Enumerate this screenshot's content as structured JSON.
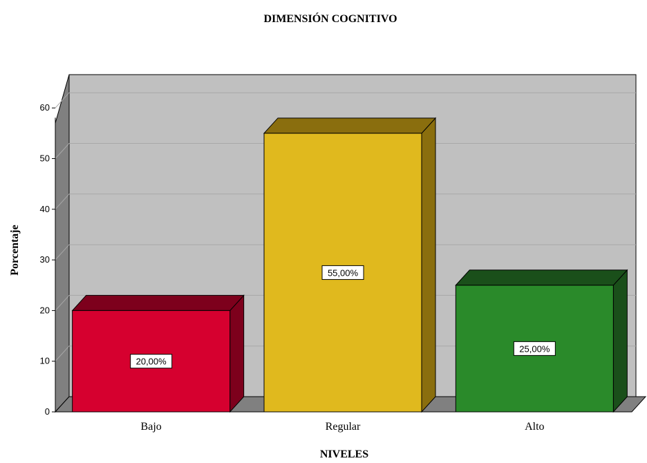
{
  "chart_data": {
    "type": "bar",
    "title": "DIMENSIÓN COGNITIVO",
    "xlabel": "NIVELES",
    "ylabel": "Porcentaje",
    "categories": [
      "Bajo",
      "Regular",
      "Alto"
    ],
    "values": [
      20,
      55,
      25
    ],
    "data_labels": [
      "20,00%",
      "55,00%",
      "25,00%"
    ],
    "yticks": [
      "0",
      "10",
      "20",
      "30",
      "40",
      "50",
      "60"
    ],
    "ylim": [
      0,
      60
    ],
    "grid": true,
    "style": "3d",
    "colors": {
      "bars": [
        {
          "front": "#d6002f",
          "top": "#7d001c",
          "side": "#7d001c"
        },
        {
          "front": "#e0b91e",
          "top": "#8a6e0e",
          "side": "#8a6e0e"
        },
        {
          "front": "#2a8a2a",
          "top": "#1a4f1a",
          "side": "#1a4f1a"
        }
      ],
      "wall": "#c0c0c0",
      "wall_side": "#808080",
      "floor": "#808080",
      "gridline": "#a8a8a8"
    }
  }
}
